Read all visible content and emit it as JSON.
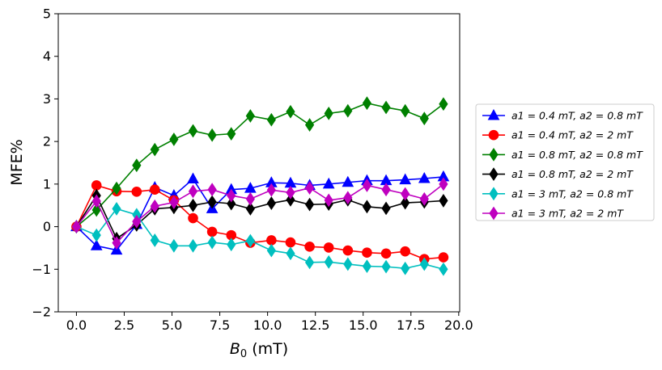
{
  "chart_data": {
    "type": "line",
    "xlabel": "B0 (mT)",
    "ylabel": "MFE%",
    "xlim": [
      -0.95,
      20.05
    ],
    "ylim": [
      -2,
      5
    ],
    "xticks": [
      "0.0",
      "2.5",
      "5.0",
      "7.5",
      "10.0",
      "12.5",
      "15.0",
      "17.5",
      "20.0"
    ],
    "yticks": [
      "−2",
      "−1",
      "0",
      "1",
      "2",
      "3",
      "4",
      "5"
    ],
    "grid": false,
    "legend_position": "right, outside plot",
    "x": [
      0,
      1.05,
      2.1,
      3.15,
      4.1,
      5.1,
      6.1,
      7.1,
      8.1,
      9.1,
      10.2,
      11.2,
      12.2,
      13.2,
      14.2,
      15.2,
      16.2,
      17.2,
      18.2,
      19.2
    ],
    "series": [
      {
        "name": "a1 = 0.4 mT, a2 = 0.8 mT",
        "color": "#0000ff",
        "marker": "triangle",
        "values": [
          0,
          -0.45,
          -0.55,
          0.05,
          0.92,
          0.73,
          1.12,
          0.42,
          0.87,
          0.9,
          1.03,
          1.02,
          0.97,
          1.0,
          1.04,
          1.08,
          1.08,
          1.1,
          1.13,
          1.17
        ]
      },
      {
        "name": "a1 = 0.4 mT, a2 = 2 mT",
        "color": "#ff0000",
        "marker": "circle",
        "values": [
          0,
          0.97,
          0.83,
          0.82,
          0.87,
          0.62,
          0.2,
          -0.12,
          -0.2,
          -0.38,
          -0.32,
          -0.37,
          -0.47,
          -0.49,
          -0.56,
          -0.61,
          -0.63,
          -0.58,
          -0.76,
          -0.72
        ]
      },
      {
        "name": "a1 = 0.8 mT, a2 = 0.8 mT",
        "color": "#008000",
        "marker": "thin_diamond",
        "values": [
          0,
          0.39,
          0.9,
          1.44,
          1.81,
          2.05,
          2.25,
          2.15,
          2.18,
          2.6,
          2.51,
          2.7,
          2.39,
          2.66,
          2.72,
          2.9,
          2.8,
          2.72,
          2.54,
          2.88
        ]
      },
      {
        "name": "a1 = 0.8 mT, a2 = 2 mT",
        "color": "#000000",
        "marker": "thin_diamond",
        "values": [
          0,
          0.73,
          -0.28,
          0.04,
          0.42,
          0.45,
          0.5,
          0.58,
          0.54,
          0.42,
          0.55,
          0.63,
          0.52,
          0.53,
          0.63,
          0.47,
          0.43,
          0.56,
          0.58,
          0.61
        ]
      },
      {
        "name": "a1 = 3 mT, a2 = 0.8 mT",
        "color": "#00bfbf",
        "marker": "thin_diamond",
        "values": [
          0,
          -0.2,
          0.42,
          0.28,
          -0.32,
          -0.45,
          -0.45,
          -0.37,
          -0.42,
          -0.33,
          -0.56,
          -0.63,
          -0.84,
          -0.83,
          -0.88,
          -0.93,
          -0.94,
          -0.98,
          -0.88,
          -1.0
        ]
      },
      {
        "name": "a1 = 3 mT, a2 = 2 mT",
        "color": "#bf00bf",
        "marker": "thin_diamond",
        "values": [
          0,
          0.6,
          -0.38,
          0.12,
          0.48,
          0.57,
          0.83,
          0.87,
          0.73,
          0.65,
          0.86,
          0.8,
          0.91,
          0.62,
          0.68,
          0.97,
          0.87,
          0.77,
          0.65,
          1.0
        ]
      }
    ]
  }
}
